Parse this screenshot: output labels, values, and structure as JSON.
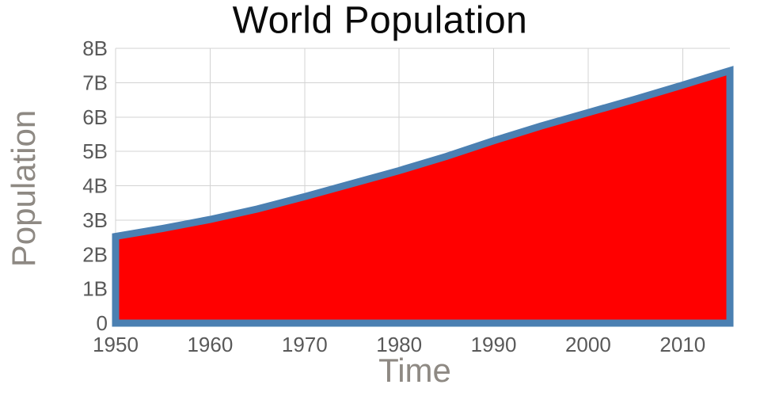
{
  "chart_data": {
    "type": "area",
    "title": "World Population",
    "xlabel": "Time",
    "ylabel": "Population",
    "y_unit": "billions",
    "xlim": [
      1950,
      2015
    ],
    "ylim": [
      0,
      8
    ],
    "grid": true,
    "legend": "none",
    "series": [
      {
        "name": "World Population",
        "x": [
          1950,
          1955,
          1960,
          1965,
          1970,
          1975,
          1980,
          1985,
          1990,
          1995,
          2000,
          2005,
          2010,
          2015
        ],
        "values": [
          2.525,
          2.758,
          3.018,
          3.322,
          3.682,
          4.061,
          4.44,
          4.853,
          5.31,
          5.735,
          6.127,
          6.52,
          6.93,
          7.35
        ]
      }
    ],
    "x_ticks": [
      {
        "value": 1950,
        "label": "1950"
      },
      {
        "value": 1960,
        "label": "1960"
      },
      {
        "value": 1970,
        "label": "1970"
      },
      {
        "value": 1980,
        "label": "1980"
      },
      {
        "value": 1990,
        "label": "1990"
      },
      {
        "value": 2000,
        "label": "2000"
      },
      {
        "value": 2010,
        "label": "2010"
      }
    ],
    "y_ticks": [
      {
        "value": 0,
        "label": "0"
      },
      {
        "value": 1,
        "label": "1B"
      },
      {
        "value": 2,
        "label": "2B"
      },
      {
        "value": 3,
        "label": "3B"
      },
      {
        "value": 4,
        "label": "4B"
      },
      {
        "value": 5,
        "label": "5B"
      },
      {
        "value": 6,
        "label": "6B"
      },
      {
        "value": 7,
        "label": "7B"
      },
      {
        "value": 8,
        "label": "8B"
      }
    ],
    "styles": {
      "fill_color": "#ff0000",
      "line_color": "#4b80b2",
      "grid_color": "#d3d3d3",
      "tick_label_color": "#595959",
      "axis_title_color": "#8e8983",
      "title_color": "#0a0a0a"
    }
  }
}
